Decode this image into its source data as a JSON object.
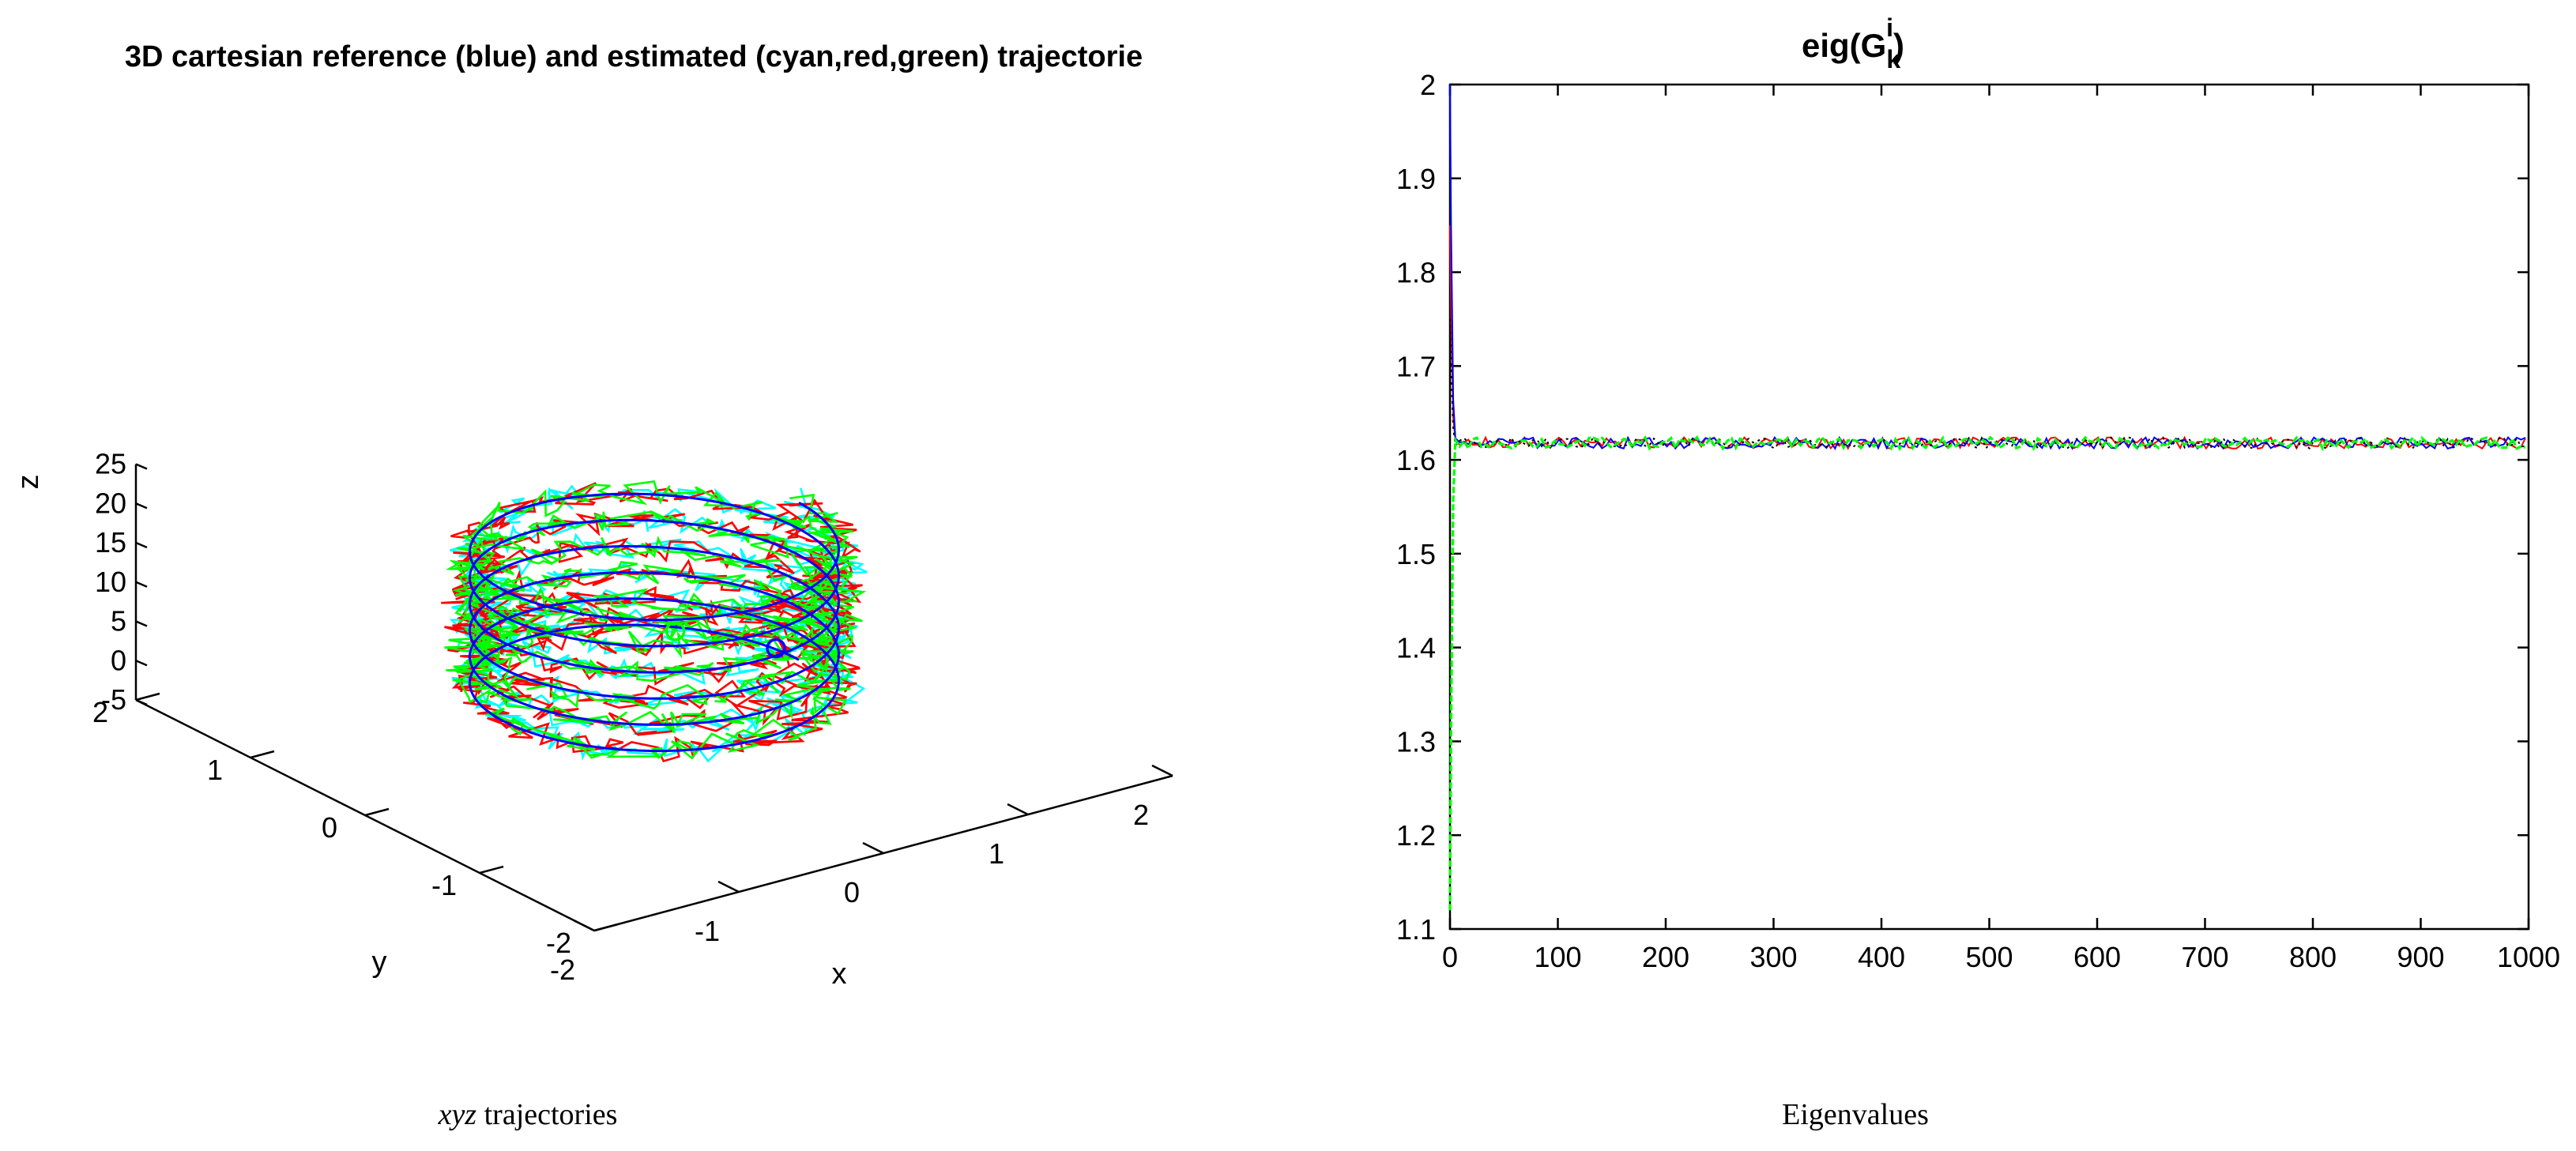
{
  "chart_data": [
    {
      "type": "line",
      "title": "3D cartesian reference (blue) and estimated (cyan,red,green) trajectorie",
      "caption": {
        "italic": "xyz",
        "rest": " trajectories"
      },
      "axes": {
        "x": {
          "label": "x",
          "range": [
            -2,
            2
          ],
          "ticks": [
            -2,
            -1,
            0,
            1,
            2
          ]
        },
        "y": {
          "label": "y",
          "range": [
            -2,
            2
          ],
          "ticks": [
            -2,
            -1,
            0,
            1,
            2
          ]
        },
        "z": {
          "label": "z",
          "range": [
            -5,
            25
          ],
          "ticks": [
            -5,
            0,
            5,
            10,
            15,
            20,
            25
          ]
        }
      },
      "helix": {
        "radius": 1.0,
        "turns": 6,
        "z_start": 0,
        "z_end": 20
      },
      "series": [
        {
          "color": "#0000ff",
          "role": "reference",
          "noise": 0.0
        },
        {
          "color": "#00ffff",
          "role": "estimate",
          "noise": 0.12
        },
        {
          "color": "#ff0000",
          "role": "estimate",
          "noise": 0.12
        },
        {
          "color": "#00ff00",
          "role": "estimate",
          "noise": 0.12
        }
      ],
      "markers": [
        {
          "color": "#0000ff",
          "x": 1.0,
          "y": 0.2,
          "z": 0
        },
        {
          "color": "#00ff00",
          "x": 0.7,
          "y": 0.7,
          "z": 0
        }
      ],
      "grid": false
    },
    {
      "type": "line",
      "title_main": "eig(G",
      "title_sub": "k",
      "title_sup": "i",
      "title_close": ")",
      "caption": "Eigenvalues",
      "xlim": [
        0,
        1000
      ],
      "ylim": [
        1.1,
        2.0
      ],
      "xticks": [
        0,
        100,
        200,
        300,
        400,
        500,
        600,
        700,
        800,
        900,
        1000
      ],
      "yticks": [
        1.1,
        1.2,
        1.3,
        1.4,
        1.5,
        1.6,
        1.7,
        1.8,
        1.9,
        2.0
      ],
      "steady_value": 1.618,
      "series": [
        {
          "color": "#ff0000",
          "initial": 1.85
        },
        {
          "color": "#0000ff",
          "initial": 2.0
        },
        {
          "color": "#000000",
          "initial": 1.75
        },
        {
          "color": "#00ff00",
          "initial": 1.12
        }
      ],
      "grid": false
    }
  ]
}
